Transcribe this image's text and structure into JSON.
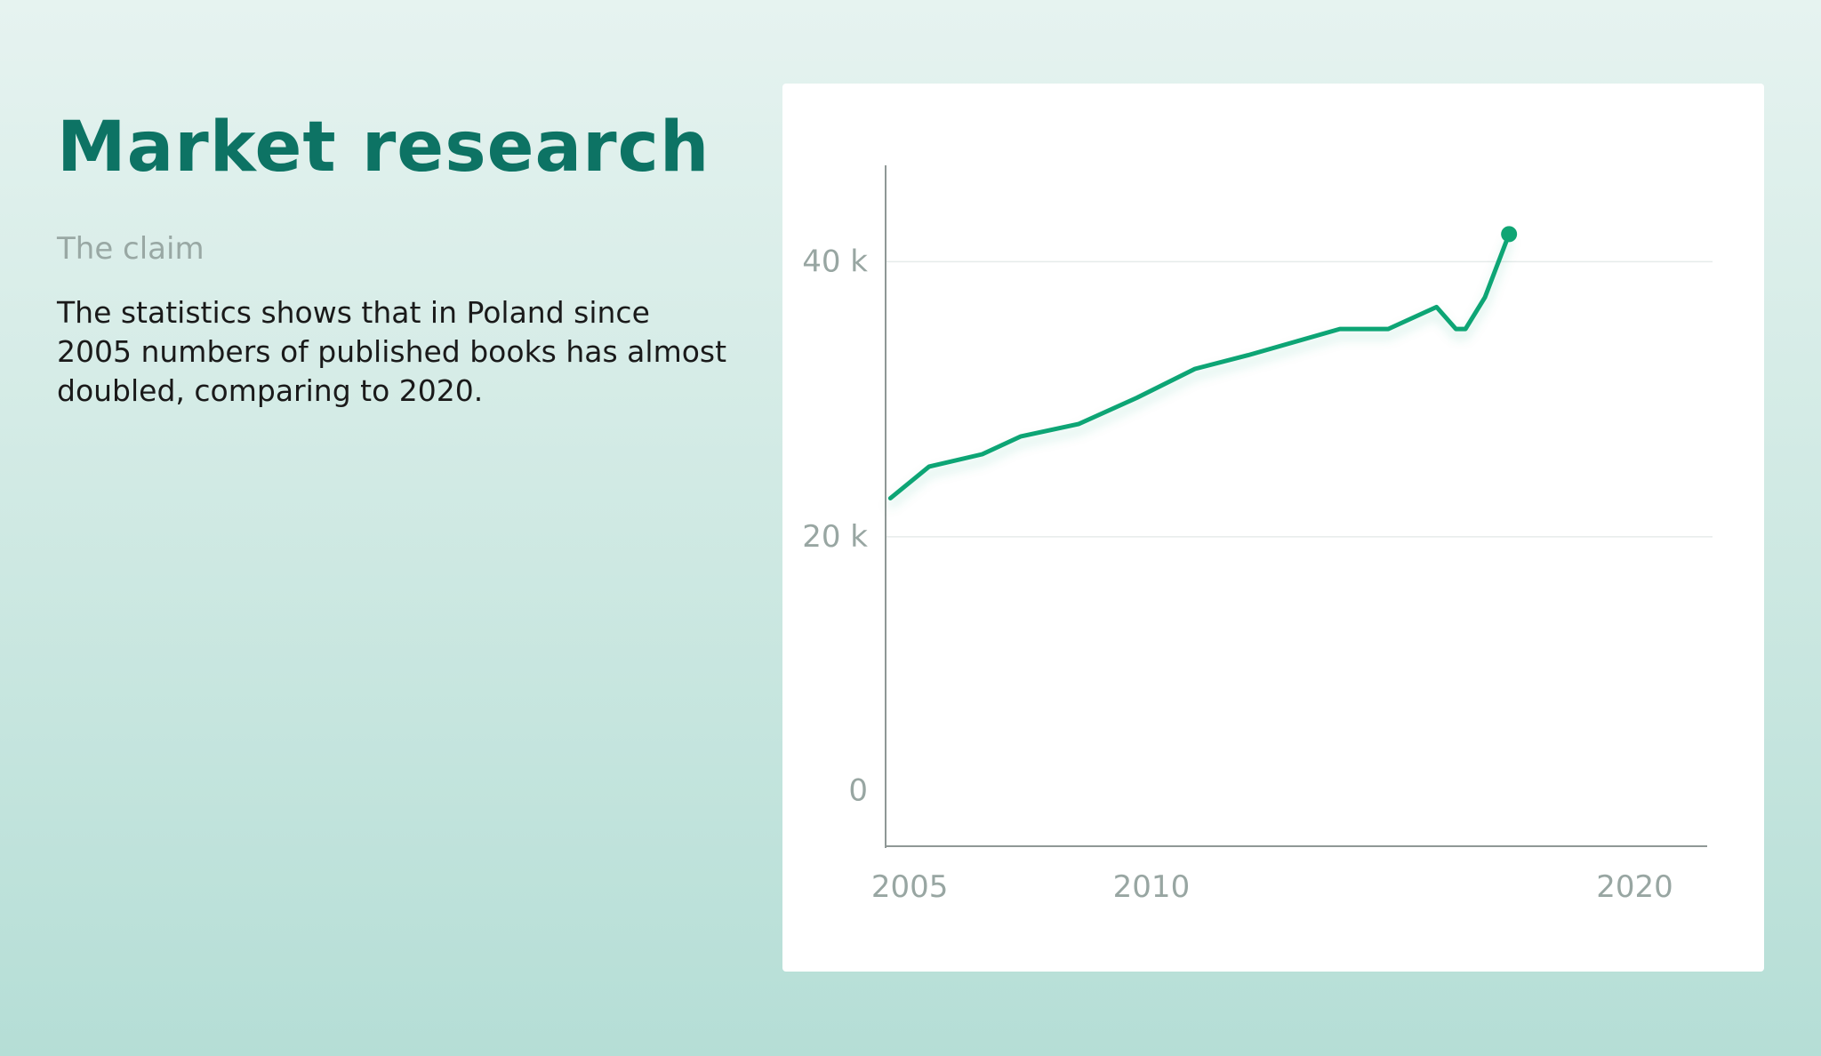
{
  "header": {
    "title": "Market research",
    "claim_label": "The claim",
    "claim_text": "The statistics shows that in Poland since 2005 numbers of published books has almost doubled, comparing to 2020."
  },
  "colors": {
    "title": "#0d7364",
    "line": "#10a574",
    "axis_text": "#98a6a2",
    "background_top": "#e6f3f0",
    "background_bottom": "#b5ded6"
  },
  "chart_data": {
    "type": "line",
    "title": "",
    "xlabel": "",
    "ylabel": "",
    "xlim": [
      2004.5,
      2021.5
    ],
    "ylim": [
      -2500,
      47000
    ],
    "x_ticks": [
      {
        "value": 2005,
        "label": "2005"
      },
      {
        "value": 2010,
        "label": "2010"
      },
      {
        "value": 2020,
        "label": "2020"
      }
    ],
    "y_ticks": [
      {
        "value": 0,
        "label": "0"
      },
      {
        "value": 20000,
        "label": "20 k"
      },
      {
        "value": 40000,
        "label": "40 k"
      }
    ],
    "grid": true,
    "series": [
      {
        "name": "",
        "color": "#10a574",
        "highlight_last_point": true,
        "x": [
          2004.6,
          2005.4,
          2006.5,
          2007.3,
          2008.5,
          2009.7,
          2010.9,
          2012.0,
          2013.9,
          2014.9,
          2015.9,
          2016.3,
          2016.5,
          2016.9,
          2017.4
        ],
        "y": [
          22800,
          25100,
          26000,
          27300,
          28200,
          30100,
          32200,
          33200,
          35100,
          35100,
          36700,
          35100,
          35100,
          37400,
          42000
        ]
      }
    ]
  }
}
